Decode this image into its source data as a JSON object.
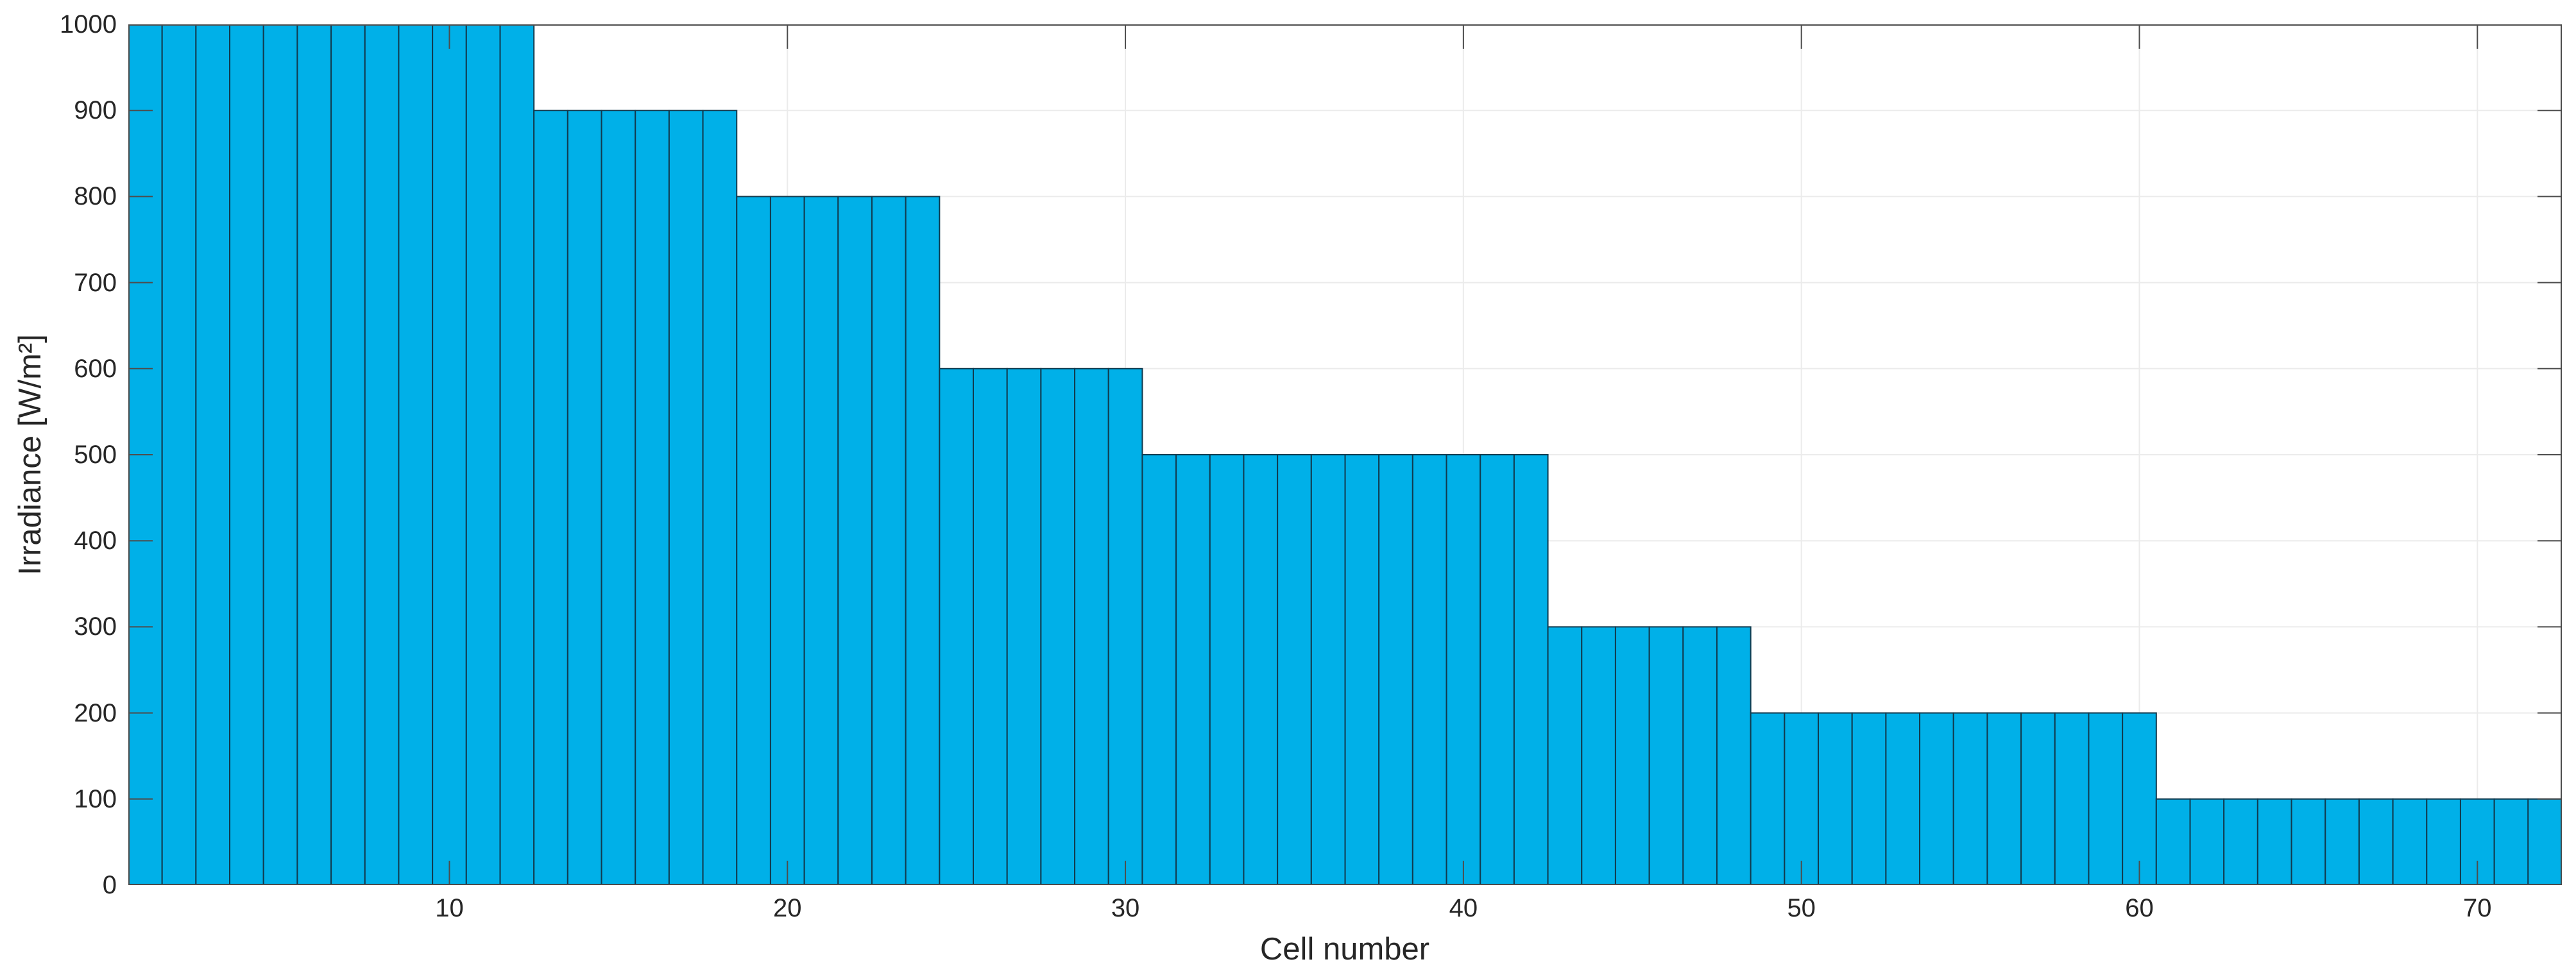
{
  "figure": {
    "background": "#ffffff",
    "bar_fill": "#00B0E8",
    "bar_edge": "#113B4F",
    "axis_color": "#4d4d4d",
    "grid_color": "#ebebeb",
    "tick_label_color": "#262626"
  },
  "chart_data": {
    "type": "bar",
    "title": "",
    "xlabel": "Cell number",
    "ylabel": "Irradiance [W/m²]",
    "n_cells": 72,
    "x_start": 1,
    "values": [
      1000,
      1000,
      1000,
      1000,
      1000,
      1000,
      1000,
      1000,
      1000,
      1000,
      1000,
      1000,
      900,
      900,
      900,
      900,
      900,
      900,
      800,
      800,
      800,
      800,
      800,
      800,
      600,
      600,
      600,
      600,
      600,
      600,
      500,
      500,
      500,
      500,
      500,
      500,
      500,
      500,
      500,
      500,
      500,
      500,
      300,
      300,
      300,
      300,
      300,
      300,
      200,
      200,
      200,
      200,
      200,
      200,
      200,
      200,
      200,
      200,
      200,
      200,
      100,
      100,
      100,
      100,
      100,
      100,
      100,
      100,
      100,
      100,
      100,
      100
    ],
    "bar_width": 1.0,
    "xlim": [
      0.5,
      72.5
    ],
    "ylim": [
      0,
      1000
    ],
    "x_ticks": [
      10,
      20,
      30,
      40,
      50,
      60,
      70
    ],
    "y_ticks": [
      0,
      100,
      200,
      300,
      400,
      500,
      600,
      700,
      800,
      900,
      1000
    ],
    "grid": true,
    "legend": null
  }
}
